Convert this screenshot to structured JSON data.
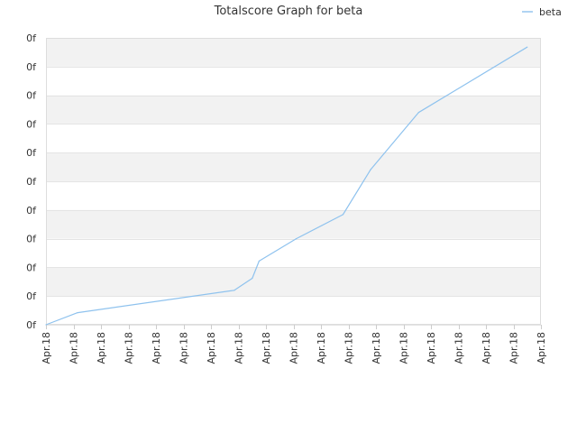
{
  "chart_data": {
    "type": "line",
    "title": "Totalscore Graph for beta",
    "xlabel": "",
    "ylabel": "",
    "grid": true,
    "legend_position": "top-right",
    "ylim": [
      0,
      10
    ],
    "yticks": [
      {
        "value": 0,
        "label": "0f"
      },
      {
        "value": 1,
        "label": "0f"
      },
      {
        "value": 2,
        "label": "0f"
      },
      {
        "value": 3,
        "label": "0f"
      },
      {
        "value": 4,
        "label": "0f"
      },
      {
        "value": 5,
        "label": "0f"
      },
      {
        "value": 6,
        "label": "0f"
      },
      {
        "value": 7,
        "label": "0f"
      },
      {
        "value": 8,
        "label": "0f"
      },
      {
        "value": 9,
        "label": "0f"
      },
      {
        "value": 10,
        "label": "0f"
      }
    ],
    "xlim": [
      0,
      18
    ],
    "xticks": [
      {
        "value": 0,
        "label": "Apr.18"
      },
      {
        "value": 1,
        "label": "Apr.18"
      },
      {
        "value": 2,
        "label": "Apr.18"
      },
      {
        "value": 3,
        "label": "Apr.18"
      },
      {
        "value": 4,
        "label": "Apr.18"
      },
      {
        "value": 5,
        "label": "Apr.18"
      },
      {
        "value": 6,
        "label": "Apr.18"
      },
      {
        "value": 7,
        "label": "Apr.18"
      },
      {
        "value": 8,
        "label": "Apr.18"
      },
      {
        "value": 9,
        "label": "Apr.18"
      },
      {
        "value": 10,
        "label": "Apr.18"
      },
      {
        "value": 11,
        "label": "Apr.18"
      },
      {
        "value": 12,
        "label": "Apr.18"
      },
      {
        "value": 13,
        "label": "Apr.18"
      },
      {
        "value": 14,
        "label": "Apr.18"
      },
      {
        "value": 15,
        "label": "Apr.18"
      },
      {
        "value": 16,
        "label": "Apr.18"
      },
      {
        "value": 17,
        "label": "Apr.18"
      },
      {
        "value": 18,
        "label": "Apr.18"
      }
    ],
    "series": [
      {
        "name": "beta",
        "color": "#8ec2ee",
        "points": [
          {
            "x": 0.0,
            "y": 0.0
          },
          {
            "x": 1.15,
            "y": 0.42
          },
          {
            "x": 6.85,
            "y": 1.2
          },
          {
            "x": 7.5,
            "y": 1.62
          },
          {
            "x": 7.75,
            "y": 2.22
          },
          {
            "x": 9.1,
            "y": 3.0
          },
          {
            "x": 10.8,
            "y": 3.84
          },
          {
            "x": 11.8,
            "y": 5.4
          },
          {
            "x": 13.55,
            "y": 7.4
          },
          {
            "x": 17.5,
            "y": 9.68
          }
        ]
      }
    ]
  }
}
